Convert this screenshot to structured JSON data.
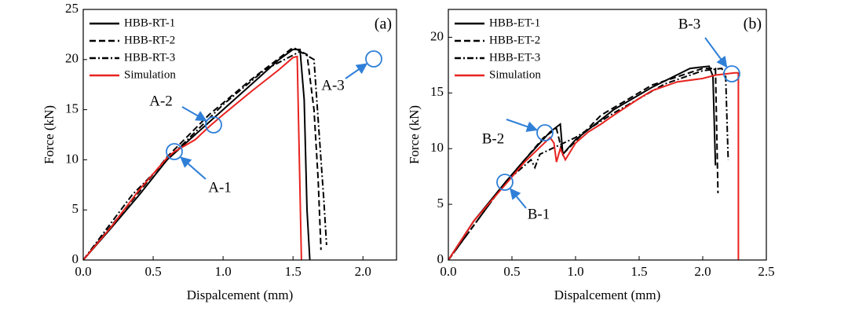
{
  "chart_data": [
    {
      "type": "line",
      "panel_label": "(a)",
      "x_label": "Dispalcement (mm)",
      "y_label": "Force (kN)",
      "xlim": [
        0,
        2.24
      ],
      "xticks": [
        {
          "value": 0,
          "label": "0.0"
        },
        0.5,
        {
          "value": 1,
          "label": "1.0"
        },
        1.5,
        {
          "value": 2,
          "label": "2.0"
        }
      ],
      "ylim": [
        0,
        25
      ],
      "yticks": [
        0,
        5,
        10,
        15,
        20,
        25
      ],
      "legend": "upper left",
      "annotations": [
        "A-1",
        "A-2",
        "A-3"
      ],
      "series": [
        {
          "name": "HBB-RT-1",
          "color": "#000000",
          "style": "solid",
          "x": [
            0,
            0.2,
            0.4,
            0.6,
            0.8,
            1.0,
            1.2,
            1.4,
            1.5,
            1.55,
            1.58,
            1.6,
            1.62
          ],
          "values": [
            0,
            3.2,
            6.5,
            10,
            12.5,
            15,
            17.5,
            20,
            21,
            21,
            16,
            5,
            0
          ]
        },
        {
          "name": "HBB-RT-2",
          "color": "#000000",
          "style": "dashed",
          "x": [
            0,
            0.4,
            0.6,
            0.9,
            1.2,
            1.5,
            1.6,
            1.65,
            1.68,
            1.7
          ],
          "values": [
            0,
            6.8,
            10.3,
            14.5,
            18,
            21.2,
            20.5,
            15,
            8,
            1
          ]
        },
        {
          "name": "HBB-RT-3",
          "color": "#000000",
          "style": "dashdot",
          "x": [
            0,
            0.35,
            0.6,
            1.0,
            1.3,
            1.55,
            1.65,
            1.68,
            1.72,
            1.74
          ],
          "values": [
            0,
            6.5,
            10,
            15.5,
            19,
            20.8,
            20,
            14,
            6,
            1.5
          ]
        },
        {
          "name": "Simulation",
          "color": "#e8231f",
          "style": "solid",
          "x": [
            0,
            0.2,
            0.4,
            0.6,
            0.65,
            0.8,
            0.9,
            1.0,
            1.2,
            1.4,
            1.5,
            1.53,
            1.56
          ],
          "values": [
            0,
            3.3,
            7,
            10.2,
            10.8,
            12,
            13.3,
            14.5,
            16.8,
            19,
            20.2,
            20.3,
            0
          ]
        }
      ]
    },
    {
      "type": "line",
      "panel_label": "(b)",
      "x_label": "Dispalcement (mm)",
      "y_label": "Force (kN)",
      "xlim": [
        0,
        2.5
      ],
      "xticks": [
        {
          "value": 0,
          "label": "0.0"
        },
        0.5,
        {
          "value": 1,
          "label": "1.0"
        },
        1.5,
        {
          "value": 2,
          "label": "2.0"
        },
        2.5
      ],
      "ylim": [
        0,
        22.5
      ],
      "yticks": [
        0,
        5,
        10,
        15,
        20
      ],
      "legend": "upper left",
      "annotations": [
        "B-1",
        "B-2",
        "B-3"
      ],
      "series": [
        {
          "name": "HBB-ET-1",
          "color": "#000000",
          "style": "solid",
          "x": [
            0,
            0.2,
            0.45,
            0.6,
            0.8,
            0.88,
            0.9,
            1.0,
            1.3,
            1.6,
            1.9,
            2.05,
            2.08,
            2.1
          ],
          "values": [
            0,
            3.5,
            7,
            9,
            11.5,
            12.2,
            9.5,
            10.8,
            13.5,
            15.5,
            17.2,
            17.4,
            16.5,
            8.5
          ]
        },
        {
          "name": "HBB-ET-2",
          "color": "#000000",
          "style": "dashed",
          "x": [
            0,
            0.45,
            0.75,
            0.85,
            0.9,
            1.2,
            1.6,
            2.0,
            2.1,
            2.12
          ],
          "values": [
            0,
            7,
            11,
            11.8,
            9.5,
            13,
            15.7,
            17.2,
            17.2,
            6
          ]
        },
        {
          "name": "HBB-ET-3",
          "color": "#000000",
          "style": "dashdot",
          "x": [
            0,
            0.45,
            0.65,
            0.68,
            0.72,
            1.0,
            1.3,
            1.7,
            2.0,
            2.15,
            2.18,
            2.2
          ],
          "values": [
            0,
            7,
            9,
            8.3,
            9.5,
            11,
            13.2,
            15.8,
            17,
            17.2,
            16.5,
            9
          ]
        },
        {
          "name": "Simulation",
          "color": "#e8231f",
          "style": "solid",
          "x": [
            0,
            0.2,
            0.45,
            0.6,
            0.8,
            0.83,
            0.85,
            0.88,
            0.92,
            1.0,
            1.1,
            1.2,
            1.3,
            1.5,
            1.6,
            1.8,
            2.0,
            2.1,
            2.25,
            2.28,
            2.28
          ],
          "values": [
            0,
            3.5,
            6.8,
            8.8,
            11,
            10.5,
            8.8,
            10,
            9,
            10.5,
            11.5,
            12.2,
            13,
            14.5,
            15.2,
            16,
            16.3,
            16.6,
            16.8,
            16.8,
            0
          ]
        }
      ]
    }
  ]
}
